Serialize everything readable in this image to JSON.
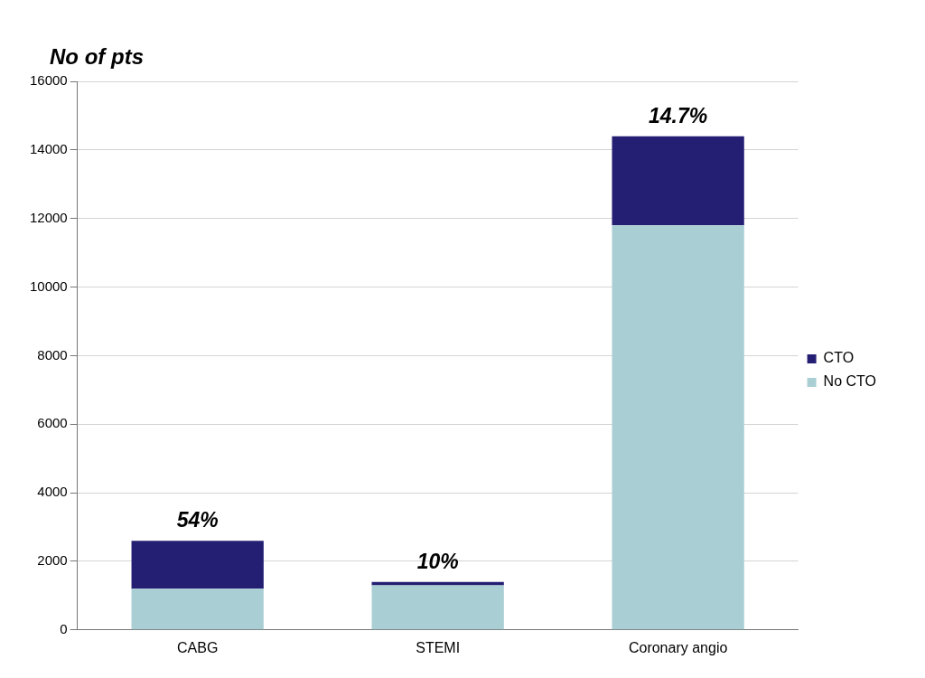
{
  "chart_data": {
    "type": "bar",
    "ylabel": "No of pts",
    "categories": [
      "CABG",
      "STEMI",
      "Coronary angio"
    ],
    "series": [
      {
        "name": "No CTO",
        "color": "#a9cfd4",
        "values": [
          1200,
          1300,
          11800
        ]
      },
      {
        "name": "CTO",
        "color": "#241f73",
        "values": [
          1400,
          100,
          2600
        ]
      }
    ],
    "stacked": true,
    "ylim": [
      0,
      16000
    ],
    "yticks": [
      0,
      2000,
      4000,
      6000,
      8000,
      10000,
      12000,
      14000,
      16000
    ],
    "grid": "y",
    "legend": "right",
    "annotations": [
      {
        "text": "54%",
        "x": "CABG",
        "y": 2600
      },
      {
        "text": "10%",
        "x": "STEMI",
        "y": 1400
      },
      {
        "text": "14.7%",
        "x": "Coronary angio",
        "y": 14400
      }
    ]
  }
}
